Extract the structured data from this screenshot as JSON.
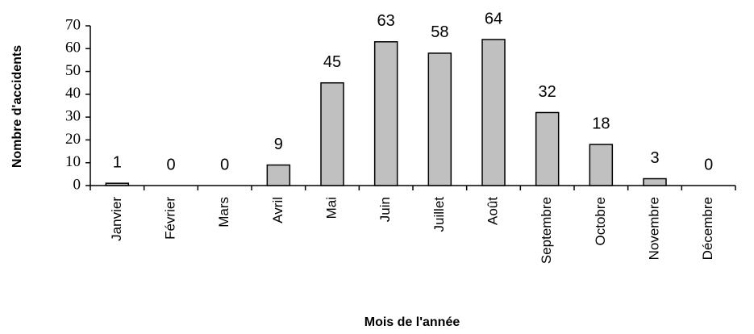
{
  "chart_data": {
    "type": "bar",
    "ylabel": "Nombre d'accidents",
    "xlabel": "Mois de l'année",
    "categories": [
      "Janvier",
      "Février",
      "Mars",
      "Avril",
      "Mai",
      "Juin",
      "Juillet",
      "Août",
      "Septembre",
      "Octobre",
      "Novembre",
      "Décembre"
    ],
    "values": [
      1,
      0,
      0,
      9,
      45,
      63,
      58,
      64,
      32,
      18,
      3,
      0
    ],
    "color": "#c0c0c0",
    "ylim": [
      0,
      70
    ],
    "yticks": [
      0,
      10,
      20,
      30,
      40,
      50,
      60,
      70
    ]
  }
}
